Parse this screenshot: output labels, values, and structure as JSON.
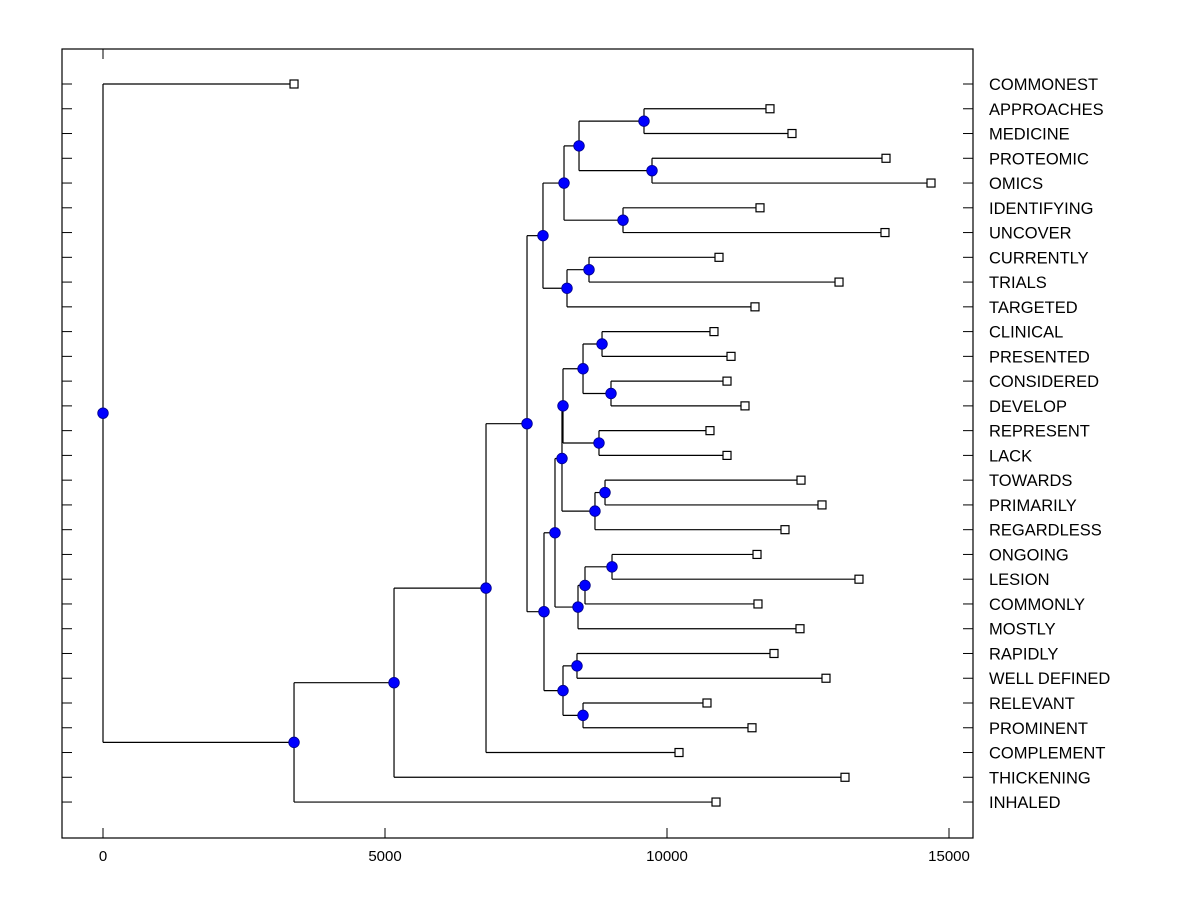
{
  "chart_data": {
    "type": "dendrogram",
    "title": "",
    "xlabel": "",
    "ylabel": "",
    "xlim": [
      -700,
      15450
    ],
    "xticks": [
      0,
      5000,
      10000,
      15000
    ],
    "xtick_labels": [
      "0",
      "5000",
      "10000",
      "15000"
    ],
    "grid": false,
    "colors": {
      "node": "#0000ff",
      "leaf": "#ffffff",
      "line": "#000000"
    },
    "leaves": [
      {
        "id": "L0",
        "label": "COMMONEST",
        "x": 3387
      },
      {
        "id": "L1",
        "label": "APPROACHES",
        "x": 11826
      },
      {
        "id": "L2",
        "label": "MEDICINE",
        "x": 12216
      },
      {
        "id": "L3",
        "label": "PROTEOMIC",
        "x": 13883
      },
      {
        "id": "L4",
        "label": "OMICS",
        "x": 14681
      },
      {
        "id": "L5",
        "label": "IDENTIFYING",
        "x": 11649
      },
      {
        "id": "L6",
        "label": "UNCOVER",
        "x": 13865
      },
      {
        "id": "L7",
        "label": "CURRENTLY",
        "x": 10922
      },
      {
        "id": "L8",
        "label": "TRIALS",
        "x": 13050
      },
      {
        "id": "L9",
        "label": "TARGETED",
        "x": 11560
      },
      {
        "id": "L10",
        "label": "CLINICAL",
        "x": 10833
      },
      {
        "id": "L11",
        "label": "PRESENTED",
        "x": 11135
      },
      {
        "id": "L12",
        "label": "CONSIDERED",
        "x": 11064
      },
      {
        "id": "L13",
        "label": "DEVELOP",
        "x": 11383
      },
      {
        "id": "L14",
        "label": "REPRESENT",
        "x": 10762
      },
      {
        "id": "L15",
        "label": "LACK",
        "x": 11064
      },
      {
        "id": "L16",
        "label": "TOWARDS",
        "x": 12376
      },
      {
        "id": "L17",
        "label": "PRIMARILY",
        "x": 12748
      },
      {
        "id": "L18",
        "label": "REGARDLESS",
        "x": 12092
      },
      {
        "id": "L19",
        "label": "ONGOING",
        "x": 11596
      },
      {
        "id": "L20",
        "label": "LESION",
        "x": 13404
      },
      {
        "id": "L21",
        "label": "COMMONLY",
        "x": 11613
      },
      {
        "id": "L22",
        "label": "MOSTLY",
        "x": 12358
      },
      {
        "id": "L23",
        "label": "RAPIDLY",
        "x": 11897
      },
      {
        "id": "L24",
        "label": "WELL DEFINED",
        "x": 12819
      },
      {
        "id": "L25",
        "label": "RELEVANT",
        "x": 10709
      },
      {
        "id": "L26",
        "label": "PROMINENT",
        "x": 11507
      },
      {
        "id": "L27",
        "label": "COMPLEMENT",
        "x": 10213
      },
      {
        "id": "L28",
        "label": "THICKENING",
        "x": 13156
      },
      {
        "id": "L29",
        "label": "INHALED",
        "x": 10869
      }
    ],
    "nodes": [
      {
        "id": "R",
        "x": 0,
        "children": [
          "L0",
          "N1"
        ]
      },
      {
        "id": "N1",
        "x": 3387,
        "children": [
          "N2",
          "L29"
        ]
      },
      {
        "id": "N2",
        "x": 5160,
        "children": [
          "N3",
          "L28"
        ]
      },
      {
        "id": "N3",
        "x": 6791,
        "children": [
          "N4",
          "L27"
        ]
      },
      {
        "id": "N4",
        "x": 7518,
        "children": [
          "A",
          "B"
        ]
      },
      {
        "id": "A",
        "x": 7801,
        "children": [
          "A1",
          "A2"
        ]
      },
      {
        "id": "A1",
        "x": 8174,
        "children": [
          "A1a",
          "A1b"
        ]
      },
      {
        "id": "A1a",
        "x": 8440,
        "children": [
          "A1a1",
          "A1a2"
        ]
      },
      {
        "id": "A1a1",
        "x": 9592,
        "children": [
          "L1",
          "L2"
        ]
      },
      {
        "id": "A1a2",
        "x": 9734,
        "children": [
          "L3",
          "L4"
        ]
      },
      {
        "id": "A1b",
        "x": 9220,
        "children": [
          "L5",
          "L6"
        ]
      },
      {
        "id": "A2",
        "x": 8227,
        "children": [
          "A2a",
          "L9"
        ]
      },
      {
        "id": "A2a",
        "x": 8617,
        "children": [
          "L7",
          "L8"
        ]
      },
      {
        "id": "B",
        "x": 7819,
        "children": [
          "B1",
          "B2"
        ]
      },
      {
        "id": "B1",
        "x": 8014,
        "children": [
          "B1a",
          "B1b"
        ]
      },
      {
        "id": "B1a",
        "x": 8138,
        "children": [
          "B1a1",
          "B1a2"
        ]
      },
      {
        "id": "B1a1",
        "x": 8156,
        "children": [
          "C1",
          "C2"
        ]
      },
      {
        "id": "C1",
        "x": 8511,
        "children": [
          "C1a",
          "C1b"
        ]
      },
      {
        "id": "C1a",
        "x": 8848,
        "children": [
          "L10",
          "L11"
        ]
      },
      {
        "id": "C1b",
        "x": 9007,
        "children": [
          "L12",
          "L13"
        ]
      },
      {
        "id": "C2",
        "x": 8794,
        "children": [
          "L14",
          "L15"
        ]
      },
      {
        "id": "B1a2",
        "x": 8723,
        "children": [
          "B1a2a",
          "L18"
        ]
      },
      {
        "id": "B1a2a",
        "x": 8901,
        "children": [
          "L16",
          "L17"
        ]
      },
      {
        "id": "B1b",
        "x": 8422,
        "children": [
          "B1b1",
          "L22"
        ]
      },
      {
        "id": "B1b1",
        "x": 8546,
        "children": [
          "B1b1a",
          "L21"
        ]
      },
      {
        "id": "B1b1a",
        "x": 9025,
        "children": [
          "L19",
          "L20"
        ]
      },
      {
        "id": "B2",
        "x": 8156,
        "children": [
          "B2a",
          "B2b"
        ]
      },
      {
        "id": "B2a",
        "x": 8404,
        "children": [
          "L23",
          "L24"
        ]
      },
      {
        "id": "B2b",
        "x": 8511,
        "children": [
          "L25",
          "L26"
        ]
      }
    ]
  }
}
